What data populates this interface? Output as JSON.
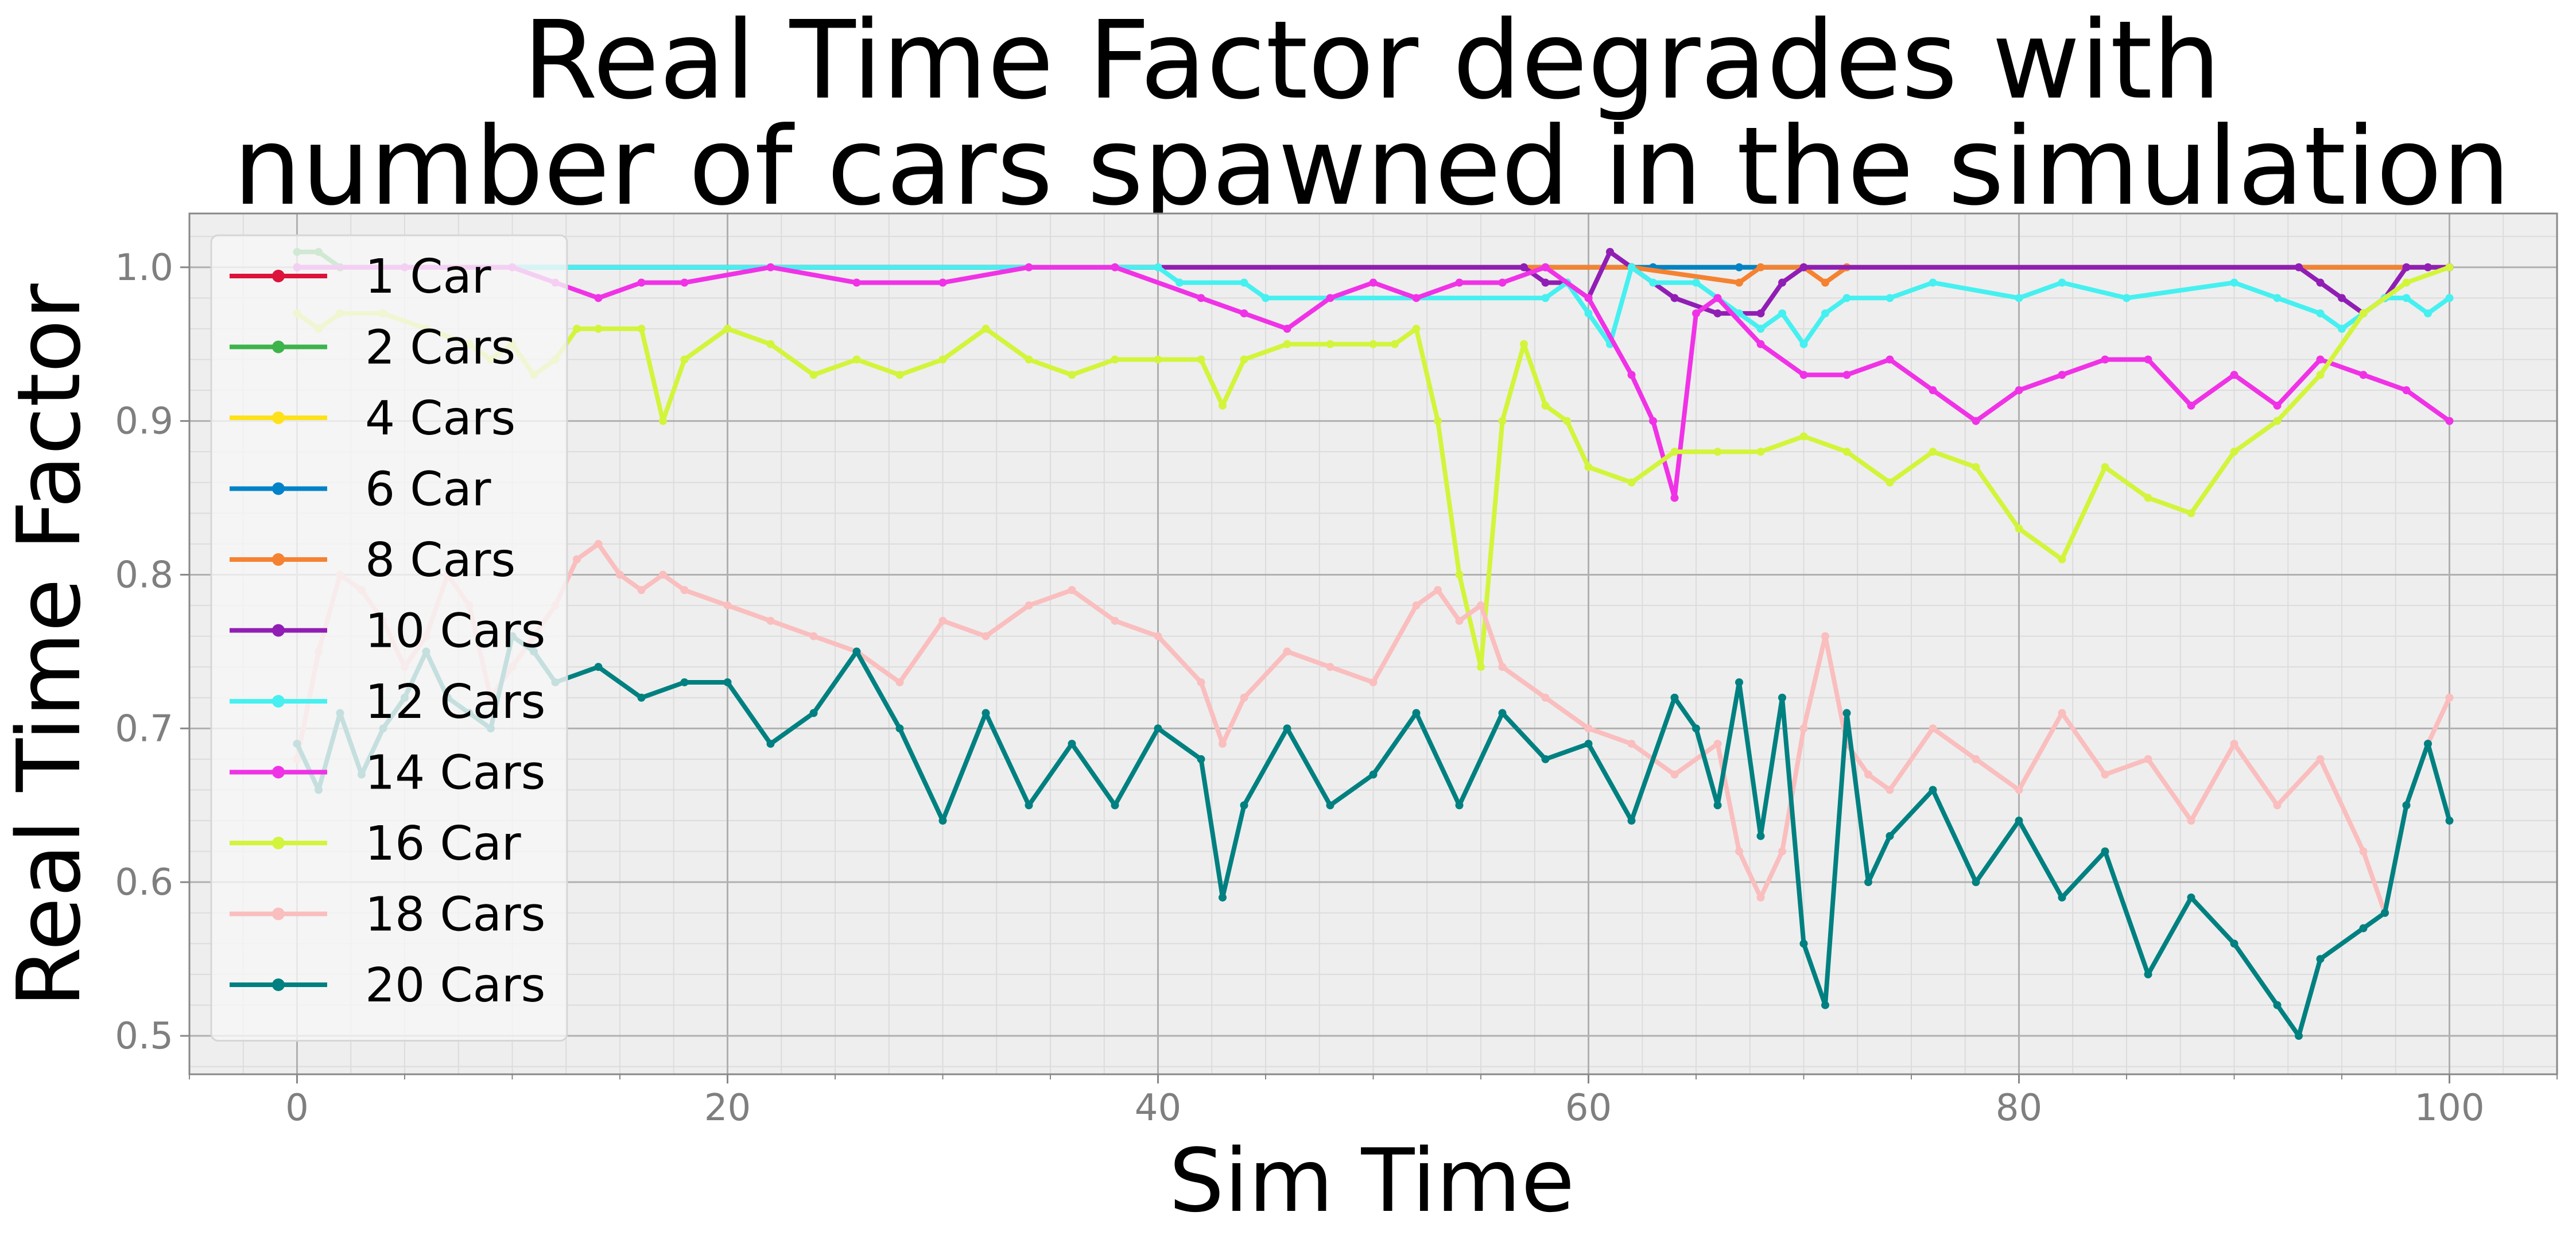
{
  "chart_data": {
    "type": "line",
    "title_lines": [
      "Real Time Factor degrades with",
      "number of cars spawned in the simulation"
    ],
    "xlabel": "Sim Time",
    "ylabel": "Real Time Factor",
    "xlim": [
      -5,
      105
    ],
    "ylim": [
      0.475,
      1.035
    ],
    "xticks": [
      0,
      20,
      40,
      60,
      80,
      100
    ],
    "yticks": [
      0.5,
      0.6,
      0.7,
      0.8,
      0.9,
      1.0
    ],
    "xtick_labels": [
      "0",
      "20",
      "40",
      "60",
      "80",
      "100"
    ],
    "ytick_labels": [
      "0.5",
      "0.6",
      "0.7",
      "0.8",
      "0.9",
      "1.0"
    ],
    "grid": true,
    "minor_grid": true,
    "legend_position": "upper-left",
    "background": "#eeeeee",
    "series": [
      {
        "name": "1 Car",
        "color": "#dc143c",
        "x": [
          0,
          100
        ],
        "y": [
          1.0,
          1.0
        ]
      },
      {
        "name": "2 Cars",
        "color": "#3cb44b",
        "x": [
          0,
          1,
          2,
          100
        ],
        "y": [
          1.01,
          1.01,
          1.0,
          1.0
        ]
      },
      {
        "name": "4 Cars",
        "color": "#ffe119",
        "x": [
          0,
          100
        ],
        "y": [
          1.0,
          1.0
        ]
      },
      {
        "name": "6 Car",
        "color": "#0082c8",
        "x": [
          0,
          62,
          63,
          67,
          100
        ],
        "y": [
          1.0,
          1.0,
          1.0,
          1.0,
          1.0
        ]
      },
      {
        "name": "8 Cars",
        "color": "#f58231",
        "x": [
          0,
          58,
          62,
          67,
          68,
          70,
          71,
          72,
          100
        ],
        "y": [
          1.0,
          1.0,
          1.0,
          0.99,
          1.0,
          1.0,
          0.99,
          1.0,
          1.0
        ]
      },
      {
        "name": "10 Cars",
        "color": "#911eb4",
        "x": [
          0,
          57,
          58,
          59,
          60,
          61,
          62,
          64,
          66,
          68,
          69,
          70,
          93,
          94,
          95,
          96,
          97,
          98,
          99,
          100
        ],
        "y": [
          1.0,
          1.0,
          0.99,
          0.99,
          0.98,
          1.01,
          1.0,
          0.98,
          0.97,
          0.97,
          0.99,
          1.0,
          1.0,
          0.99,
          0.98,
          0.97,
          0.98,
          1.0,
          1.0,
          1.0
        ]
      },
      {
        "name": "12 Cars",
        "color": "#46f0f0",
        "x": [
          0,
          40,
          41,
          44,
          45,
          58,
          59,
          60,
          61,
          62,
          63,
          65,
          66,
          67,
          68,
          69,
          70,
          71,
          72,
          74,
          76,
          80,
          82,
          85,
          90,
          92,
          94,
          95,
          96,
          97,
          98,
          99,
          100
        ],
        "y": [
          1.0,
          1.0,
          0.99,
          0.99,
          0.98,
          0.98,
          0.99,
          0.97,
          0.95,
          1.0,
          0.99,
          0.99,
          0.98,
          0.97,
          0.96,
          0.97,
          0.95,
          0.97,
          0.98,
          0.98,
          0.99,
          0.98,
          0.99,
          0.98,
          0.99,
          0.98,
          0.97,
          0.96,
          0.97,
          0.98,
          0.98,
          0.97,
          0.98
        ]
      },
      {
        "name": "14 Cars",
        "color": "#f032e6",
        "x": [
          0,
          5,
          10,
          12,
          14,
          16,
          18,
          22,
          26,
          30,
          34,
          38,
          42,
          44,
          46,
          48,
          50,
          52,
          54,
          56,
          58,
          60,
          62,
          63,
          64,
          65,
          66,
          68,
          70,
          72,
          74,
          76,
          78,
          80,
          82,
          84,
          86,
          88,
          90,
          92,
          94,
          96,
          98,
          100
        ],
        "y": [
          1.0,
          1.0,
          1.0,
          0.99,
          0.98,
          0.99,
          0.99,
          1.0,
          0.99,
          0.99,
          1.0,
          1.0,
          0.98,
          0.97,
          0.96,
          0.98,
          0.99,
          0.98,
          0.99,
          0.99,
          1.0,
          0.98,
          0.93,
          0.9,
          0.85,
          0.97,
          0.98,
          0.95,
          0.93,
          0.93,
          0.94,
          0.92,
          0.9,
          0.92,
          0.93,
          0.94,
          0.94,
          0.91,
          0.93,
          0.91,
          0.94,
          0.93,
          0.92,
          0.9
        ]
      },
      {
        "name": "16 Car",
        "color": "#d2f53c",
        "x": [
          0,
          1,
          2,
          4,
          6,
          8,
          9,
          10,
          11,
          12,
          13,
          14,
          16,
          17,
          18,
          20,
          22,
          24,
          26,
          28,
          30,
          32,
          34,
          36,
          38,
          40,
          42,
          43,
          44,
          46,
          48,
          50,
          51,
          52,
          53,
          54,
          55,
          56,
          57,
          58,
          59,
          60,
          62,
          64,
          66,
          68,
          70,
          72,
          74,
          76,
          78,
          80,
          82,
          84,
          86,
          88,
          90,
          92,
          94,
          96,
          98,
          100
        ],
        "y": [
          0.97,
          0.96,
          0.97,
          0.97,
          0.96,
          0.95,
          0.94,
          0.95,
          0.93,
          0.94,
          0.96,
          0.96,
          0.96,
          0.9,
          0.94,
          0.96,
          0.95,
          0.93,
          0.94,
          0.93,
          0.94,
          0.96,
          0.94,
          0.93,
          0.94,
          0.94,
          0.94,
          0.91,
          0.94,
          0.95,
          0.95,
          0.95,
          0.95,
          0.96,
          0.9,
          0.8,
          0.74,
          0.9,
          0.95,
          0.91,
          0.9,
          0.87,
          0.86,
          0.88,
          0.88,
          0.88,
          0.89,
          0.88,
          0.86,
          0.88,
          0.87,
          0.83,
          0.81,
          0.87,
          0.85,
          0.84,
          0.88,
          0.9,
          0.93,
          0.97,
          0.99,
          1.0
        ]
      },
      {
        "name": "18 Cars",
        "color": "#fabebe",
        "x": [
          0,
          1,
          2,
          3,
          4,
          5,
          6,
          7,
          8,
          9,
          10,
          11,
          12,
          13,
          14,
          15,
          16,
          17,
          18,
          20,
          22,
          24,
          26,
          28,
          30,
          32,
          34,
          36,
          38,
          40,
          42,
          43,
          44,
          46,
          48,
          50,
          52,
          53,
          54,
          55,
          56,
          58,
          60,
          62,
          64,
          66,
          67,
          68,
          69,
          70,
          71,
          72,
          73,
          74,
          76,
          78,
          80,
          82,
          84,
          86,
          88,
          90,
          92,
          94,
          96,
          97,
          98,
          99,
          100
        ],
        "y": [
          0.68,
          0.75,
          0.8,
          0.79,
          0.77,
          0.74,
          0.76,
          0.8,
          0.78,
          0.72,
          0.74,
          0.76,
          0.78,
          0.81,
          0.82,
          0.8,
          0.79,
          0.8,
          0.79,
          0.78,
          0.77,
          0.76,
          0.75,
          0.73,
          0.77,
          0.76,
          0.78,
          0.79,
          0.77,
          0.76,
          0.73,
          0.69,
          0.72,
          0.75,
          0.74,
          0.73,
          0.78,
          0.79,
          0.77,
          0.78,
          0.74,
          0.72,
          0.7,
          0.69,
          0.67,
          0.69,
          0.62,
          0.59,
          0.62,
          0.7,
          0.76,
          0.69,
          0.67,
          0.66,
          0.7,
          0.68,
          0.66,
          0.71,
          0.67,
          0.68,
          0.64,
          0.69,
          0.65,
          0.68,
          0.62,
          0.58,
          0.65,
          0.69,
          0.72
        ]
      },
      {
        "name": "20 Cars",
        "color": "#008080",
        "x": [
          0,
          1,
          2,
          3,
          4,
          5,
          6,
          7,
          8,
          9,
          10,
          11,
          12,
          14,
          16,
          18,
          20,
          22,
          24,
          26,
          28,
          30,
          32,
          34,
          36,
          38,
          40,
          42,
          43,
          44,
          46,
          48,
          50,
          52,
          54,
          56,
          58,
          60,
          62,
          64,
          65,
          66,
          67,
          68,
          69,
          70,
          71,
          72,
          73,
          74,
          76,
          78,
          80,
          82,
          84,
          86,
          88,
          90,
          92,
          93,
          94,
          96,
          97,
          98,
          99,
          100
        ],
        "y": [
          0.69,
          0.66,
          0.71,
          0.67,
          0.7,
          0.72,
          0.75,
          0.72,
          0.71,
          0.7,
          0.76,
          0.75,
          0.73,
          0.74,
          0.72,
          0.73,
          0.73,
          0.69,
          0.71,
          0.75,
          0.7,
          0.64,
          0.71,
          0.65,
          0.69,
          0.65,
          0.7,
          0.68,
          0.59,
          0.65,
          0.7,
          0.65,
          0.67,
          0.71,
          0.65,
          0.71,
          0.68,
          0.69,
          0.64,
          0.72,
          0.7,
          0.65,
          0.73,
          0.63,
          0.72,
          0.56,
          0.52,
          0.71,
          0.6,
          0.63,
          0.66,
          0.6,
          0.64,
          0.59,
          0.62,
          0.54,
          0.59,
          0.56,
          0.52,
          0.5,
          0.55,
          0.57,
          0.58,
          0.65,
          0.69,
          0.64
        ]
      }
    ]
  }
}
